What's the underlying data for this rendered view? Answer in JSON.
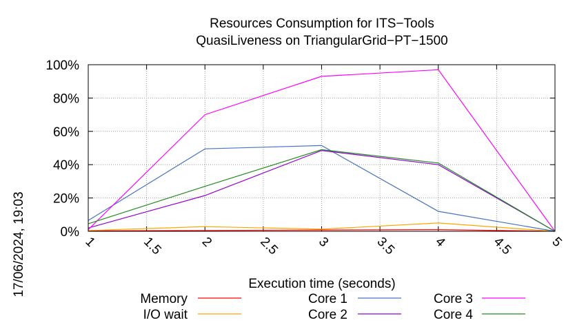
{
  "chart_data": {
    "type": "line",
    "title": "Resources Consumption for ITS−Tools",
    "subtitle": "QuasiLiveness on TriangularGrid−PT−1500",
    "xlabel": "Execution time (seconds)",
    "ylabel": "",
    "timestamp": "17/06/2024, 19:03",
    "xlim": [
      1,
      5
    ],
    "ylim": [
      0,
      100
    ],
    "x_ticks": [
      1,
      1.5,
      2,
      2.5,
      3,
      3.5,
      4,
      4.5,
      5
    ],
    "x_tick_labels": [
      "1",
      "1.5",
      "2",
      "2.5",
      "3",
      "3.5",
      "4",
      "4.5",
      "5"
    ],
    "y_ticks": [
      0,
      20,
      40,
      60,
      80,
      100
    ],
    "y_tick_labels": [
      "0%",
      "20%",
      "40%",
      "60%",
      "80%",
      "100%"
    ],
    "grid": true,
    "legend_position": "bottom",
    "x": [
      1,
      2,
      3,
      4,
      5
    ],
    "series": [
      {
        "name": "Memory",
        "color": "#ff0000",
        "values": [
          0.3,
          0.5,
          0.8,
          1.0,
          0
        ]
      },
      {
        "name": "I/O wait",
        "color": "#ffa500",
        "values": [
          0.5,
          2.8,
          1.3,
          5.0,
          0
        ]
      },
      {
        "name": "Core 1",
        "color": "#4472c4",
        "values": [
          6.5,
          49.5,
          51.5,
          12.0,
          0
        ]
      },
      {
        "name": "Core 2",
        "color": "#9400d3",
        "values": [
          2.0,
          21.5,
          48.5,
          40.0,
          0
        ]
      },
      {
        "name": "Core 3",
        "color": "#ff00ff",
        "values": [
          1.0,
          70.0,
          93.0,
          97.0,
          0
        ]
      },
      {
        "name": "Core 4",
        "color": "#228b22",
        "values": [
          4.5,
          27.0,
          49.0,
          41.0,
          0
        ]
      }
    ]
  }
}
